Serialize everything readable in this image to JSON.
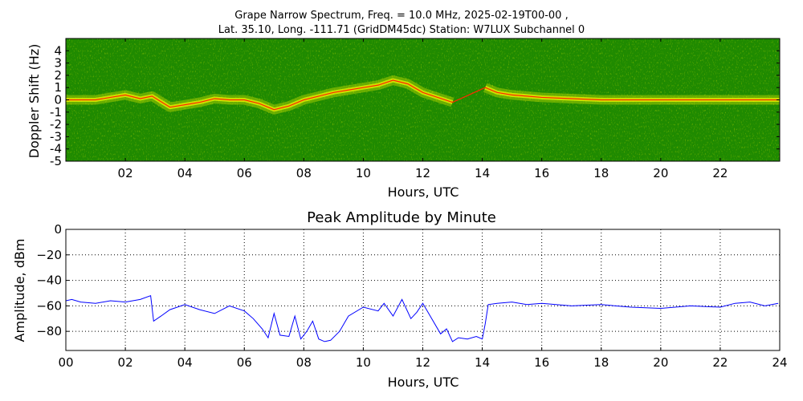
{
  "figure": {
    "title_line1": "Grape Narrow Spectrum, Freq. = 10.0 MHz, 2025-02-19T00-00 ,",
    "title_line2": "Lat.  35.10, Long. -111.71 (GridDM45dc) Station: W7LUX Subchannel 0"
  },
  "colors": {
    "spectrogram_background": "#1f8a00",
    "spectrogram_signal": "#f0f000",
    "spectrogram_peak": "#ff2a00",
    "amplitude_line": "#0000ff"
  },
  "chart_data": [
    {
      "type": "heatmap",
      "title": "",
      "xlabel": "Hours, UTC",
      "ylabel": "Doppler Shift (Hz)",
      "xlim": [
        0,
        24
      ],
      "ylim": [
        -5,
        5
      ],
      "xticks": [
        "02",
        "04",
        "06",
        "08",
        "10",
        "12",
        "14",
        "16",
        "18",
        "20",
        "22"
      ],
      "yticks": [
        "4",
        "3",
        "2",
        "1",
        "0",
        "-1",
        "-2",
        "-3",
        "-4",
        "-5"
      ],
      "grid": false,
      "colormap": "green-yellow-red (signal intensity)",
      "peak_trace": {
        "x": [
          0,
          0.5,
          1,
          1.5,
          2,
          2.5,
          2.9,
          3.5,
          4,
          4.5,
          5,
          5.5,
          6,
          6.5,
          7,
          7.5,
          8,
          8.5,
          9,
          9.5,
          10,
          10.5,
          11,
          11.5,
          12,
          12.5,
          13,
          13.5,
          14.1,
          14.5,
          15,
          15.5,
          16,
          17,
          18,
          19,
          20,
          21,
          22,
          23,
          24
        ],
        "y": [
          0,
          0,
          0,
          0.2,
          0.4,
          0.1,
          0.3,
          -0.6,
          -0.4,
          -0.2,
          0.1,
          0,
          0,
          -0.3,
          -0.8,
          -0.5,
          0,
          0.3,
          0.6,
          0.8,
          1.0,
          1.2,
          1.6,
          1.3,
          0.6,
          0.2,
          -0.2,
          null,
          1.0,
          0.6,
          0.4,
          0.3,
          0.2,
          0.1,
          0,
          0,
          0,
          0,
          0,
          0,
          0
        ]
      }
    },
    {
      "type": "line",
      "title": "Peak Amplitude by Minute",
      "xlabel": "Hours, UTC",
      "ylabel": "Amplitude, dBm",
      "xlim": [
        0,
        24
      ],
      "ylim": [
        -95,
        0
      ],
      "xticks": [
        "00",
        "02",
        "04",
        "06",
        "08",
        "10",
        "12",
        "14",
        "16",
        "18",
        "20",
        "22",
        "24"
      ],
      "yticks": [
        "0",
        "−20",
        "−40",
        "−60",
        "−80"
      ],
      "grid": true,
      "series": [
        {
          "x": [
            0,
            0.2,
            0.5,
            1,
            1.5,
            2,
            2.5,
            2.85,
            2.95,
            3.2,
            3.5,
            4,
            4.5,
            5,
            5.5,
            6,
            6.3,
            6.6,
            6.8,
            7,
            7.2,
            7.5,
            7.7,
            7.9,
            8.1,
            8.3,
            8.5,
            8.7,
            8.9,
            9.2,
            9.5,
            10,
            10.5,
            10.7,
            11,
            11.3,
            11.6,
            11.8,
            12,
            12.3,
            12.6,
            12.8,
            13,
            13.2,
            13.5,
            13.8,
            14.0,
            14.1,
            14.2,
            14.5,
            15,
            15.5,
            16,
            17,
            18,
            19,
            20,
            21,
            22,
            22.5,
            23,
            23.5,
            23.95
          ],
          "y": [
            -56,
            -55,
            -57,
            -58,
            -56,
            -57,
            -55,
            -52,
            -72,
            -68,
            -63,
            -59,
            -63,
            -66,
            -60,
            -64,
            -70,
            -78,
            -85,
            -66,
            -83,
            -84,
            -68,
            -86,
            -80,
            -72,
            -86,
            -88,
            -87,
            -80,
            -68,
            -61,
            -64,
            -58,
            -68,
            -55,
            -70,
            -65,
            -58,
            -70,
            -82,
            -78,
            -88,
            -85,
            -86,
            -84,
            -86,
            -74,
            -59,
            -58,
            -57,
            -59,
            -58,
            -60,
            -59,
            -61,
            -62,
            -60,
            -61,
            -58,
            -57,
            -60,
            -58
          ]
        }
      ]
    }
  ]
}
